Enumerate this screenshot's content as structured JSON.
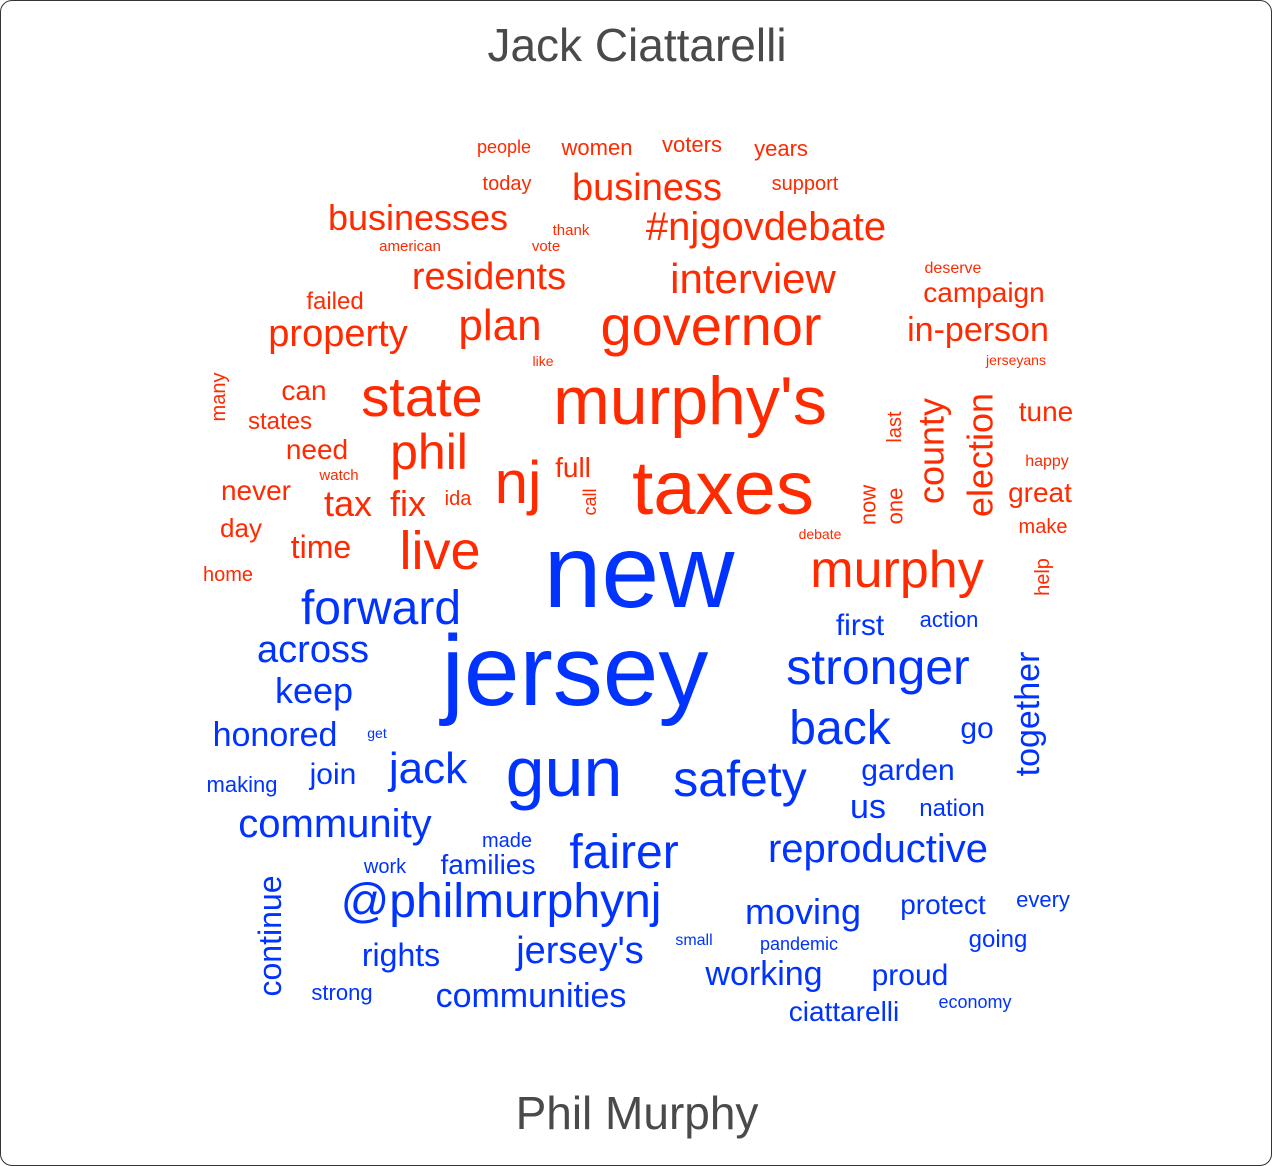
{
  "chart_data": {
    "type": "wordcloud",
    "groups": [
      {
        "name": "Jack Ciattarelli",
        "color": "#ff2a00",
        "words": [
          {
            "text": "people",
            "weight": 1
          },
          {
            "text": "women",
            "weight": 2
          },
          {
            "text": "voters",
            "weight": 2
          },
          {
            "text": "years",
            "weight": 2
          },
          {
            "text": "today",
            "weight": 1.5
          },
          {
            "text": "business",
            "weight": 4
          },
          {
            "text": "support",
            "weight": 1.5
          },
          {
            "text": "businesses",
            "weight": 3.5
          },
          {
            "text": "thank",
            "weight": 1
          },
          {
            "text": "#njgovdebate",
            "weight": 4
          },
          {
            "text": "american",
            "weight": 1
          },
          {
            "text": "vote",
            "weight": 1
          },
          {
            "text": "residents",
            "weight": 4
          },
          {
            "text": "interview",
            "weight": 4.5
          },
          {
            "text": "deserve",
            "weight": 1
          },
          {
            "text": "failed",
            "weight": 2
          },
          {
            "text": "campaign",
            "weight": 2.5
          },
          {
            "text": "property",
            "weight": 3.5
          },
          {
            "text": "plan",
            "weight": 4.5
          },
          {
            "text": "governor",
            "weight": 6
          },
          {
            "text": "in-person",
            "weight": 3
          },
          {
            "text": "like",
            "weight": 1
          },
          {
            "text": "jerseyans",
            "weight": 1
          },
          {
            "text": "many",
            "weight": 1.5
          },
          {
            "text": "can",
            "weight": 2.5
          },
          {
            "text": "states",
            "weight": 2
          },
          {
            "text": "state",
            "weight": 5.5
          },
          {
            "text": "murphy's",
            "weight": 7
          },
          {
            "text": "last",
            "weight": 1.5
          },
          {
            "text": "county",
            "weight": 3.5
          },
          {
            "text": "election",
            "weight": 3
          },
          {
            "text": "tune",
            "weight": 2.5
          },
          {
            "text": "need",
            "weight": 2.5
          },
          {
            "text": "phil",
            "weight": 5
          },
          {
            "text": "watch",
            "weight": 1
          },
          {
            "text": "happy",
            "weight": 1
          },
          {
            "text": "never",
            "weight": 2.5
          },
          {
            "text": "tax",
            "weight": 3.5
          },
          {
            "text": "fix",
            "weight": 3.5
          },
          {
            "text": "ida",
            "weight": 1.5
          },
          {
            "text": "nj",
            "weight": 6
          },
          {
            "text": "full",
            "weight": 2.5
          },
          {
            "text": "call",
            "weight": 1.5
          },
          {
            "text": "taxes",
            "weight": 9
          },
          {
            "text": "now",
            "weight": 2
          },
          {
            "text": "one",
            "weight": 2
          },
          {
            "text": "great",
            "weight": 2.5
          },
          {
            "text": "make",
            "weight": 1.5
          },
          {
            "text": "day",
            "weight": 2
          },
          {
            "text": "debate",
            "weight": 1
          },
          {
            "text": "time",
            "weight": 3
          },
          {
            "text": "live",
            "weight": 5
          },
          {
            "text": "murphy",
            "weight": 6
          },
          {
            "text": "home",
            "weight": 1.5
          },
          {
            "text": "help",
            "weight": 1.5
          }
        ]
      },
      {
        "name": "Phil Murphy",
        "color": "#0033ff",
        "words": [
          {
            "text": "new",
            "weight": 10
          },
          {
            "text": "forward",
            "weight": 5
          },
          {
            "text": "first",
            "weight": 2.5
          },
          {
            "text": "action",
            "weight": 1.5
          },
          {
            "text": "across",
            "weight": 4
          },
          {
            "text": "jersey",
            "weight": 10
          },
          {
            "text": "stronger",
            "weight": 5
          },
          {
            "text": "together",
            "weight": 3.5
          },
          {
            "text": "keep",
            "weight": 3.5
          },
          {
            "text": "honored",
            "weight": 3
          },
          {
            "text": "get",
            "weight": 1
          },
          {
            "text": "back",
            "weight": 5
          },
          {
            "text": "go",
            "weight": 2.5
          },
          {
            "text": "making",
            "weight": 1.5
          },
          {
            "text": "join",
            "weight": 2.5
          },
          {
            "text": "jack",
            "weight": 4.5
          },
          {
            "text": "gun",
            "weight": 7.5
          },
          {
            "text": "safety",
            "weight": 5.5
          },
          {
            "text": "garden",
            "weight": 2.5
          },
          {
            "text": "us",
            "weight": 3
          },
          {
            "text": "nation",
            "weight": 2
          },
          {
            "text": "community",
            "weight": 4
          },
          {
            "text": "made",
            "weight": 1.5
          },
          {
            "text": "fairer",
            "weight": 5
          },
          {
            "text": "reproductive",
            "weight": 4
          },
          {
            "text": "work",
            "weight": 1.5
          },
          {
            "text": "families",
            "weight": 2.5
          },
          {
            "text": "continue",
            "weight": 3.5
          },
          {
            "text": "@philmurphynj",
            "weight": 5
          },
          {
            "text": "moving",
            "weight": 3.5
          },
          {
            "text": "protect",
            "weight": 2.5
          },
          {
            "text": "every",
            "weight": 1.5
          },
          {
            "text": "small",
            "weight": 1
          },
          {
            "text": "pandemic",
            "weight": 1
          },
          {
            "text": "going",
            "weight": 2
          },
          {
            "text": "rights",
            "weight": 3
          },
          {
            "text": "jersey's",
            "weight": 4
          },
          {
            "text": "working",
            "weight": 3.5
          },
          {
            "text": "proud",
            "weight": 3
          },
          {
            "text": "strong",
            "weight": 1.5
          },
          {
            "text": "communities",
            "weight": 3.5
          },
          {
            "text": "ciattarelli",
            "weight": 2.5
          },
          {
            "text": "economy",
            "weight": 1
          }
        ]
      }
    ]
  }
}
